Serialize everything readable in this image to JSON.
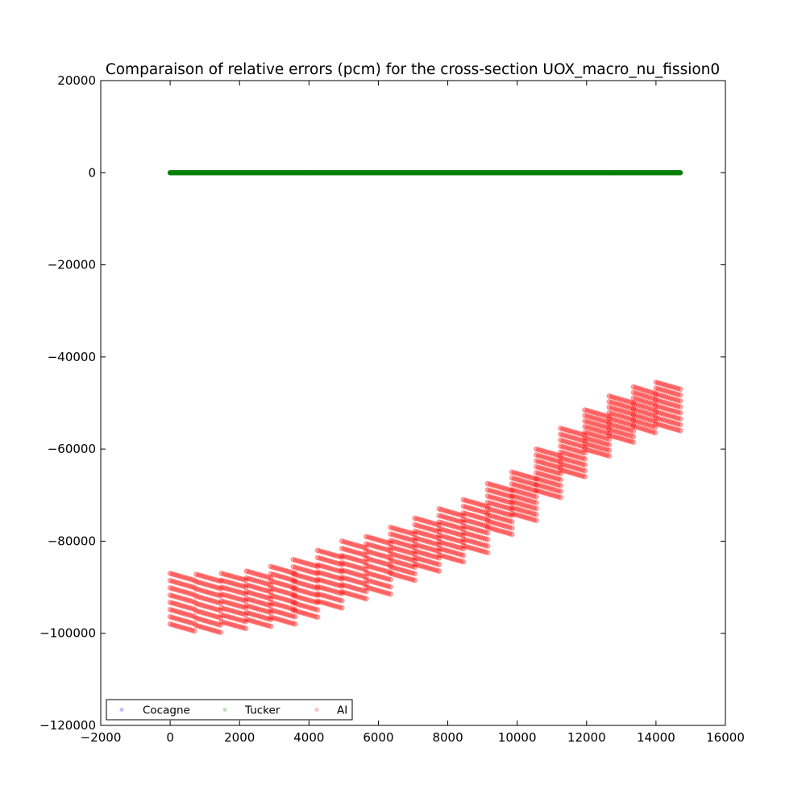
{
  "chart_data": {
    "type": "scatter",
    "title": "Comparaison of relative errors (pcm) for the cross-section UOX_macro_nu_fission0",
    "xlabel": "",
    "ylabel": "",
    "xlim": [
      -2000,
      16000
    ],
    "ylim": [
      -120000,
      20000
    ],
    "x_ticks": [
      -2000,
      0,
      2000,
      4000,
      6000,
      8000,
      10000,
      12000,
      14000,
      16000
    ],
    "x_tick_labels": [
      "−2000",
      "0",
      "2000",
      "4000",
      "6000",
      "8000",
      "10000",
      "12000",
      "14000",
      "16000"
    ],
    "y_ticks": [
      20000,
      0,
      -20000,
      -40000,
      -60000,
      -80000,
      -100000,
      -120000
    ],
    "y_tick_labels": [
      "20000",
      "0",
      "−20000",
      "−40000",
      "−60000",
      "−80000",
      "−100000",
      "−120000"
    ],
    "grid": false,
    "legend_position": "lower-left",
    "series": [
      {
        "name": "Cocagne",
        "color": "#0000ff",
        "x_range": [
          0,
          14700
        ],
        "y_constant": 0
      },
      {
        "name": "Tucker",
        "color": "#008000",
        "x_range": [
          0,
          14700
        ],
        "y_constant": 0
      },
      {
        "name": "AI",
        "color": "#ff0000",
        "x_range": [
          0,
          14700
        ],
        "segments": [
          {
            "x": [
              0,
              700
            ],
            "top": -87000,
            "bottom": -98000
          },
          {
            "x": [
              750,
              1450
            ],
            "top": -87200,
            "bottom": -98300
          },
          {
            "x": [
              1480,
              2200
            ],
            "top": -87000,
            "bottom": -97500
          },
          {
            "x": [
              2200,
              2900
            ],
            "top": -86500,
            "bottom": -97000
          },
          {
            "x": [
              2900,
              3600
            ],
            "top": -85500,
            "bottom": -96500
          },
          {
            "x": [
              3550,
              4250
            ],
            "top": -84000,
            "bottom": -95000
          },
          {
            "x": [
              4250,
              4950
            ],
            "top": -82000,
            "bottom": -93000
          },
          {
            "x": [
              4950,
              5650
            ],
            "top": -80000,
            "bottom": -91000
          },
          {
            "x": [
              5650,
              6350
            ],
            "top": -79000,
            "bottom": -90000
          },
          {
            "x": [
              6350,
              7050
            ],
            "top": -77000,
            "bottom": -87000
          },
          {
            "x": [
              7050,
              7750
            ],
            "top": -75000,
            "bottom": -85000
          },
          {
            "x": [
              7750,
              8450
            ],
            "top": -73000,
            "bottom": -83000
          },
          {
            "x": [
              8450,
              9150
            ],
            "top": -71000,
            "bottom": -81000
          },
          {
            "x": [
              9150,
              9850
            ],
            "top": -67500,
            "bottom": -77000
          },
          {
            "x": [
              9850,
              10550
            ],
            "top": -65000,
            "bottom": -74000
          },
          {
            "x": [
              10550,
              11250
            ],
            "top": -60000,
            "bottom": -69000
          },
          {
            "x": [
              11250,
              11950
            ],
            "top": -55500,
            "bottom": -64500
          },
          {
            "x": [
              11950,
              12650
            ],
            "top": -51500,
            "bottom": -60000
          },
          {
            "x": [
              12650,
              13350
            ],
            "top": -48500,
            "bottom": -57000
          },
          {
            "x": [
              13350,
              14000
            ],
            "top": -46500,
            "bottom": -55000
          },
          {
            "x": [
              14000,
              14700
            ],
            "top": -45500,
            "bottom": -54500
          }
        ]
      }
    ]
  }
}
